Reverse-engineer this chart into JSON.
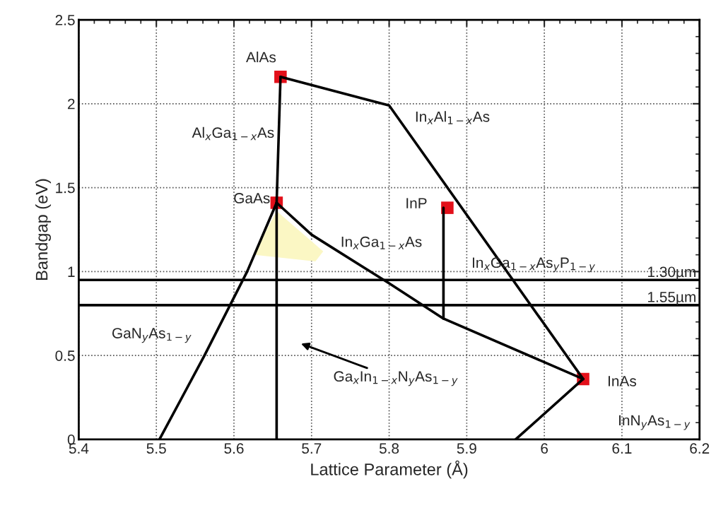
{
  "chart_data": {
    "type": "line",
    "xlabel": "Lattice Parameter (Å)",
    "ylabel": "Bandgap (eV)",
    "xlim": [
      5.4,
      6.2
    ],
    "xticks": [
      5.4,
      5.5,
      5.6,
      5.7,
      5.8,
      5.9,
      6,
      6.1,
      6.2
    ],
    "ylim": [
      0,
      2.5
    ],
    "yticks": [
      0,
      0.5,
      1,
      1.5,
      2,
      2.5
    ],
    "grid": true,
    "legend": false,
    "line_style": "solid",
    "series": [
      {
        "color": "#000000",
        "x": [
          5.66,
          5.655
        ],
        "values": [
          2.16,
          1.41
        ]
      },
      {
        "color": "#000000",
        "x": [
          5.66,
          5.8,
          6.05
        ],
        "values": [
          2.16,
          1.99,
          0.36
        ]
      },
      {
        "color": "#000000",
        "x": [
          5.655,
          5.7,
          5.8,
          5.87,
          6.05
        ],
        "values": [
          1.41,
          1.22,
          0.93,
          0.72,
          0.36
        ]
      },
      {
        "color": "#000000",
        "x": [
          5.655,
          5.617,
          5.562,
          5.504
        ],
        "values": [
          1.41,
          1.0,
          0.5,
          0
        ]
      },
      {
        "color": "#000000",
        "x": [
          5.655,
          5.655
        ],
        "values": [
          1.41,
          0
        ]
      },
      {
        "color": "#000000",
        "x": [
          5.87,
          5.87
        ],
        "values": [
          1.38,
          0.72
        ]
      },
      {
        "color": "#000000",
        "x": [
          6.05,
          5.963
        ],
        "values": [
          0.36,
          0
        ]
      },
      {
        "type": "scatter",
        "marker": "square",
        "color": "#e3101a",
        "x": [
          5.66,
          5.655,
          5.875,
          6.05
        ],
        "values": [
          2.16,
          1.41,
          1.38,
          0.36
        ]
      }
    ],
    "ref_lines": [
      {
        "axis": "y",
        "value": 0.95,
        "label": "1.30µm",
        "color": "#000000"
      },
      {
        "axis": "y",
        "value": 0.8,
        "label": "1.55µm",
        "color": "#000000"
      }
    ],
    "annotations": [
      {
        "text": "AlAs",
        "x": 5.66,
        "y": 2.16
      },
      {
        "text": "Al$_{x}$Ga$_{1−x}$As",
        "x": 5.657,
        "y": 1.82
      },
      {
        "text": "In$_{x}$Al$_{1−x}$As",
        "x": 5.8115,
        "y": 1.915
      },
      {
        "text": "GaAs",
        "x": 5.655,
        "y": 1.41
      },
      {
        "text": "InP",
        "x": 5.875,
        "y": 1.38
      },
      {
        "text": "In$_{x}$Ga$_{1−x}$As",
        "x": 5.75,
        "y": 1.075
      },
      "In$_{x}$Ga$_{1−x}$As$_{y}$P$_{1−y}$",
      "GaN$_{y}$As$_{1−y}$",
      "Ga$_{x}$In$_{1−x}$N$_{y}$As$_{1−y}$",
      {
        "text": "InAs",
        "x": 6.05,
        "y": 0.36
      },
      "InN$_{y}$As$_{1−y}$"
    ]
  }
}
